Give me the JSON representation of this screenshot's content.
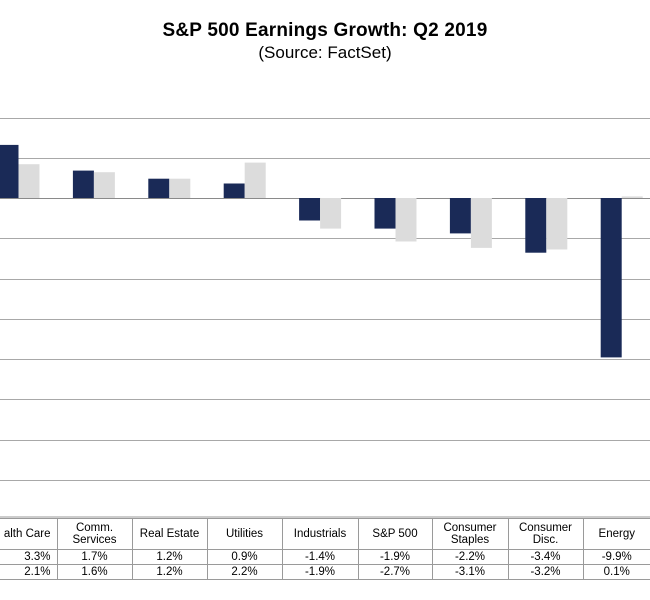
{
  "chart_data": {
    "type": "bar",
    "title": "S&P 500 Earnings Growth: Q2 2019",
    "subtitle": "(Source: FactSet)",
    "categories": [
      "Health Care",
      "Comm. Services",
      "Real Estate",
      "Utilities",
      "Industrials",
      "S&P 500",
      "Consumer Staples",
      "Consumer Disc.",
      "Energy"
    ],
    "table_headers": [
      "alth Care",
      "Comm. Services",
      "Real Estate",
      "Utilities",
      "Industrials",
      "S&P 500",
      "Consumer Staples",
      "Consumer Disc.",
      "Energy"
    ],
    "series": [
      {
        "values": [
          3.3,
          1.7,
          1.2,
          0.9,
          -1.4,
          -1.9,
          -2.2,
          -3.4,
          -9.9
        ],
        "labels": [
          "3.3%",
          "1.7%",
          "1.2%",
          "0.9%",
          "-1.4%",
          "-1.9%",
          "-2.2%",
          "-3.4%",
          "-9.9%"
        ],
        "color": "#1a2a57"
      },
      {
        "values": [
          2.1,
          1.6,
          1.2,
          2.2,
          -1.9,
          -2.7,
          -3.1,
          -3.2,
          0.1
        ],
        "labels": [
          "2.1%",
          "1.6%",
          "1.2%",
          "2.2%",
          "-1.9%",
          "-2.7%",
          "-3.1%",
          "-3.2%",
          "0.1%"
        ],
        "color": "#dcdcdc"
      }
    ],
    "ylim": [
      -18.2,
      7.5
    ],
    "grid": true,
    "legend": "none"
  }
}
